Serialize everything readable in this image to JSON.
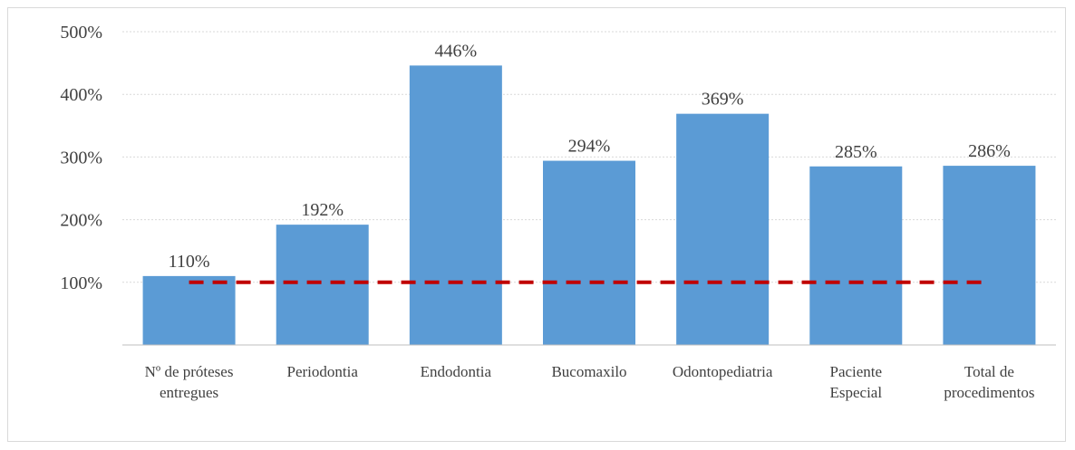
{
  "chart_data": {
    "type": "bar",
    "title": "",
    "xlabel": "",
    "ylabel": "",
    "categories": [
      [
        "Nº de próteses",
        "entregues"
      ],
      [
        "Periodontia"
      ],
      [
        "Endodontia"
      ],
      [
        "Bucomaxilo"
      ],
      [
        "Odontopediatria"
      ],
      [
        "Paciente",
        "Especial"
      ],
      [
        "Total de",
        "procedimentos"
      ]
    ],
    "values": [
      110,
      192,
      446,
      294,
      369,
      285,
      286
    ],
    "data_labels": [
      "110%",
      "192%",
      "446%",
      "294%",
      "369%",
      "285%",
      "286%"
    ],
    "yticks": [
      {
        "value": 100,
        "label": "100%"
      },
      {
        "value": 200,
        "label": "200%"
      },
      {
        "value": 300,
        "label": "300%"
      },
      {
        "value": 400,
        "label": "400%"
      },
      {
        "value": 500,
        "label": "500%"
      }
    ],
    "ylim": [
      0,
      500
    ],
    "grid": true,
    "bar_color": "#5b9bd5",
    "reference_line": {
      "value": 100,
      "style": "dashed",
      "color": "#c00000"
    },
    "legend": "none"
  }
}
